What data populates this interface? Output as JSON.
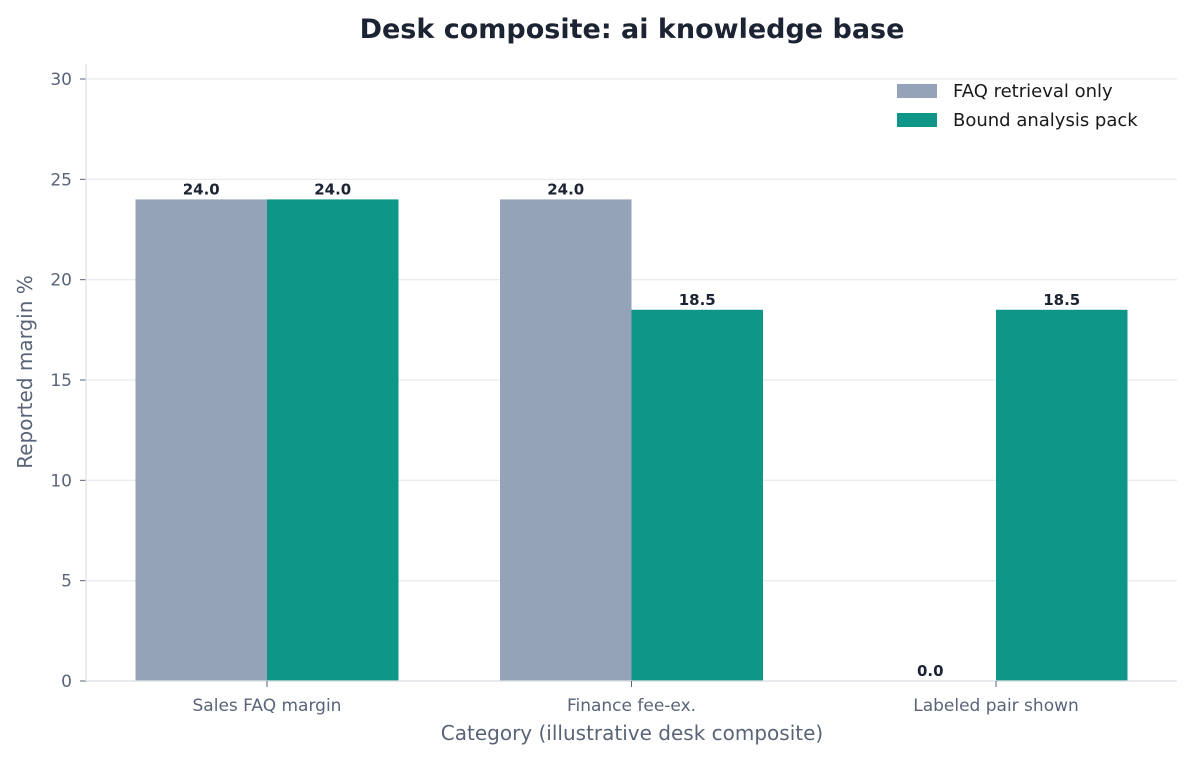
{
  "chart_data": {
    "type": "bar",
    "title": "Desk composite: ai knowledge base",
    "xlabel": "Category (illustrative desk composite)",
    "ylabel": "Reported margin %",
    "categories": [
      "Sales FAQ margin",
      "Finance fee-ex.",
      "Labeled pair shown"
    ],
    "series": [
      {
        "name": "FAQ retrieval only",
        "values": [
          24.0,
          24.0,
          0.0
        ],
        "color": "#95a3b8"
      },
      {
        "name": "Bound analysis pack",
        "values": [
          24.0,
          18.5,
          18.5
        ],
        "color": "#0e9688"
      }
    ],
    "ylim": [
      0,
      30
    ],
    "yticks": [
      0,
      5,
      10,
      15,
      20,
      25,
      30
    ],
    "grid": true,
    "legend": "top-right"
  }
}
